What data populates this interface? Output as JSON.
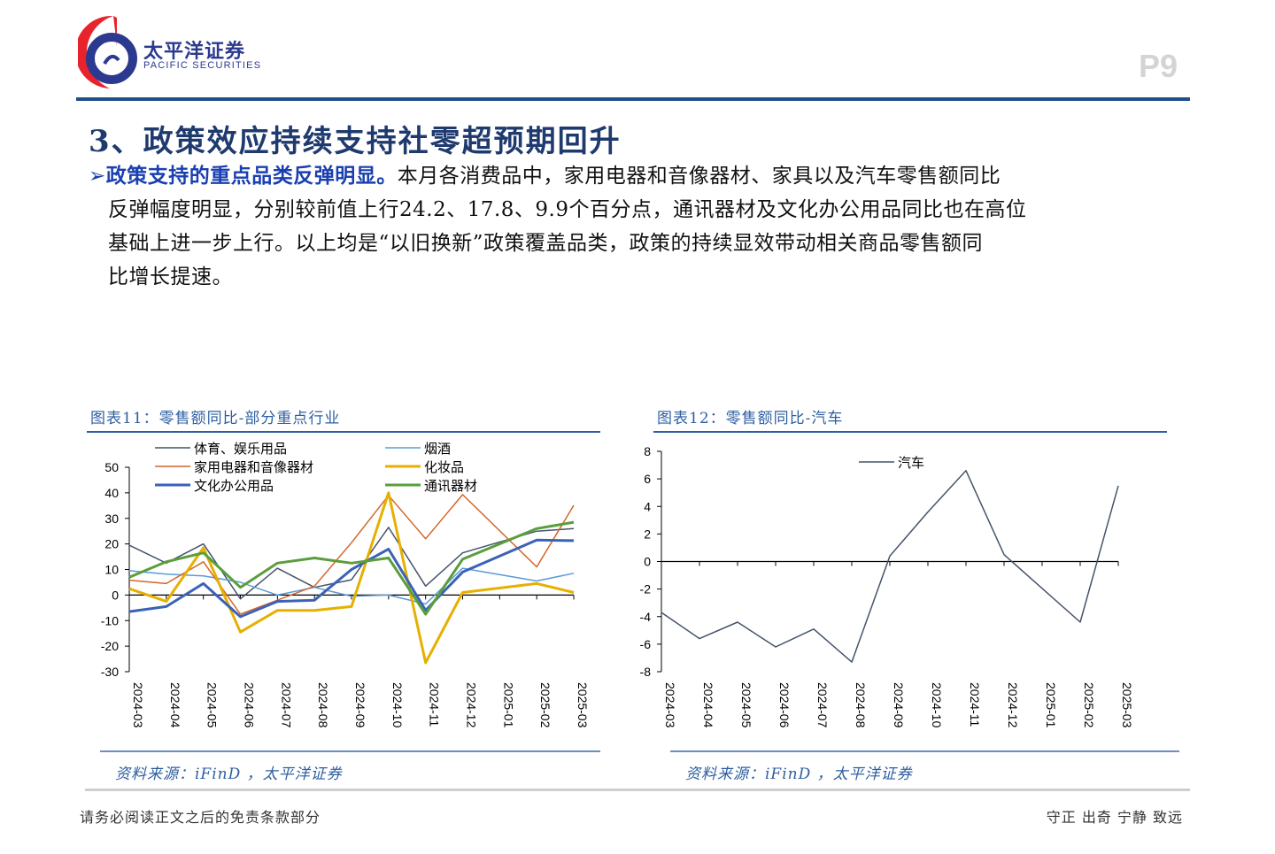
{
  "header": {
    "logo_cn": "太平洋证券",
    "logo_en": "PACIFIC SECURITIES",
    "page_number": "P9",
    "brand_colors": {
      "red": "#e8232b",
      "blue": "#2b3a8f"
    }
  },
  "section_title": "3、政策效应持续支持社零超预期回升",
  "paragraph": {
    "lead": "政策支持的重点品类反弹明显。",
    "lines": [
      "本月各消费品中，家用电器和音像器材、家具以及汽车零售额同比",
      "反弹幅度明显，分别较前值上行24.2、17.8、9.9个百分点，通讯器材及文化办公用品同比也在高位",
      "基础上进一步上行。以上均是“以旧换新”政策覆盖品类，政策的持续显效带动相关商品零售额同",
      "比增长提速。"
    ]
  },
  "figures": [
    {
      "caption": "图表11：零售额同比-部分重点行业",
      "source": "资料来源：iFinD ，太平洋证券"
    },
    {
      "caption": "图表12：零售额同比-汽车",
      "source": "资料来源：iFinD ，太平洋证券"
    }
  ],
  "chart_data": [
    {
      "type": "line",
      "ylim": [
        -30,
        50
      ],
      "yticks": [
        50,
        40,
        30,
        20,
        10,
        0,
        -10,
        -20,
        -30
      ],
      "grid": false,
      "legend": "top",
      "categories": [
        "2024-03",
        "2024-04",
        "2024-05",
        "2024-06",
        "2024-07",
        "2024-08",
        "2024-09",
        "2024-10",
        "2024-11",
        "2024-12",
        "2025-01",
        "2025-02",
        "2025-03"
      ],
      "series": [
        {
          "name": "体育、娱乐用品",
          "color": "#44546a",
          "width": 1.5,
          "values": [
            19.5,
            12.5,
            20,
            -1.5,
            10.5,
            3,
            6,
            26.5,
            3.5,
            16.5,
            null,
            25,
            26
          ]
        },
        {
          "name": "烟酒",
          "color": "#5b9bd5",
          "width": 1.5,
          "values": [
            9.5,
            8.2,
            7.5,
            5,
            0,
            3,
            -0.5,
            0,
            -3.5,
            10.5,
            null,
            5.5,
            8.5
          ]
        },
        {
          "name": "家用电器和音像器材",
          "color": "#d4652a",
          "width": 1.5,
          "values": [
            5.8,
            4.5,
            13,
            -7.5,
            -2,
            3.5,
            20.5,
            39,
            22,
            39.3,
            null,
            11,
            35.1
          ]
        },
        {
          "name": "化妆品",
          "color": "#e6b000",
          "width": 3,
          "values": [
            2.5,
            -2.5,
            18.5,
            -14.5,
            -6,
            -6,
            -4.5,
            40,
            -26.5,
            1,
            null,
            4.5,
            1
          ]
        },
        {
          "name": "文化办公用品",
          "color": "#3a62b8",
          "width": 3,
          "values": [
            -6.5,
            -4.5,
            4.5,
            -8.5,
            -2.5,
            -2,
            10,
            18,
            -6,
            9,
            null,
            21.5,
            21.3
          ]
        },
        {
          "name": "通讯器材",
          "color": "#5a9e3c",
          "width": 3,
          "values": [
            7,
            13,
            16.5,
            3,
            12.5,
            14.5,
            12.5,
            14.5,
            -7.5,
            14,
            null,
            26,
            28.5
          ]
        }
      ]
    },
    {
      "type": "line",
      "ylim": [
        -8,
        8
      ],
      "yticks": [
        8,
        6,
        4,
        2,
        0,
        -2,
        -4,
        -6,
        -8
      ],
      "grid": false,
      "legend": "top",
      "categories": [
        "2024-03",
        "2024-04",
        "2024-05",
        "2024-06",
        "2024-07",
        "2024-08",
        "2024-09",
        "2024-10",
        "2024-11",
        "2024-12",
        "2025-01",
        "2025-02",
        "2025-03"
      ],
      "series": [
        {
          "name": "汽车",
          "color": "#44546a",
          "width": 1.5,
          "values": [
            -3.7,
            -5.6,
            -4.4,
            -6.2,
            -4.9,
            -7.3,
            0.4,
            3.6,
            6.6,
            0.5,
            null,
            -4.4,
            5.5
          ]
        }
      ]
    }
  ],
  "footer": {
    "left": "请务必阅读正文之后的免责条款部分",
    "right": "守正 出奇 宁静 致远"
  }
}
